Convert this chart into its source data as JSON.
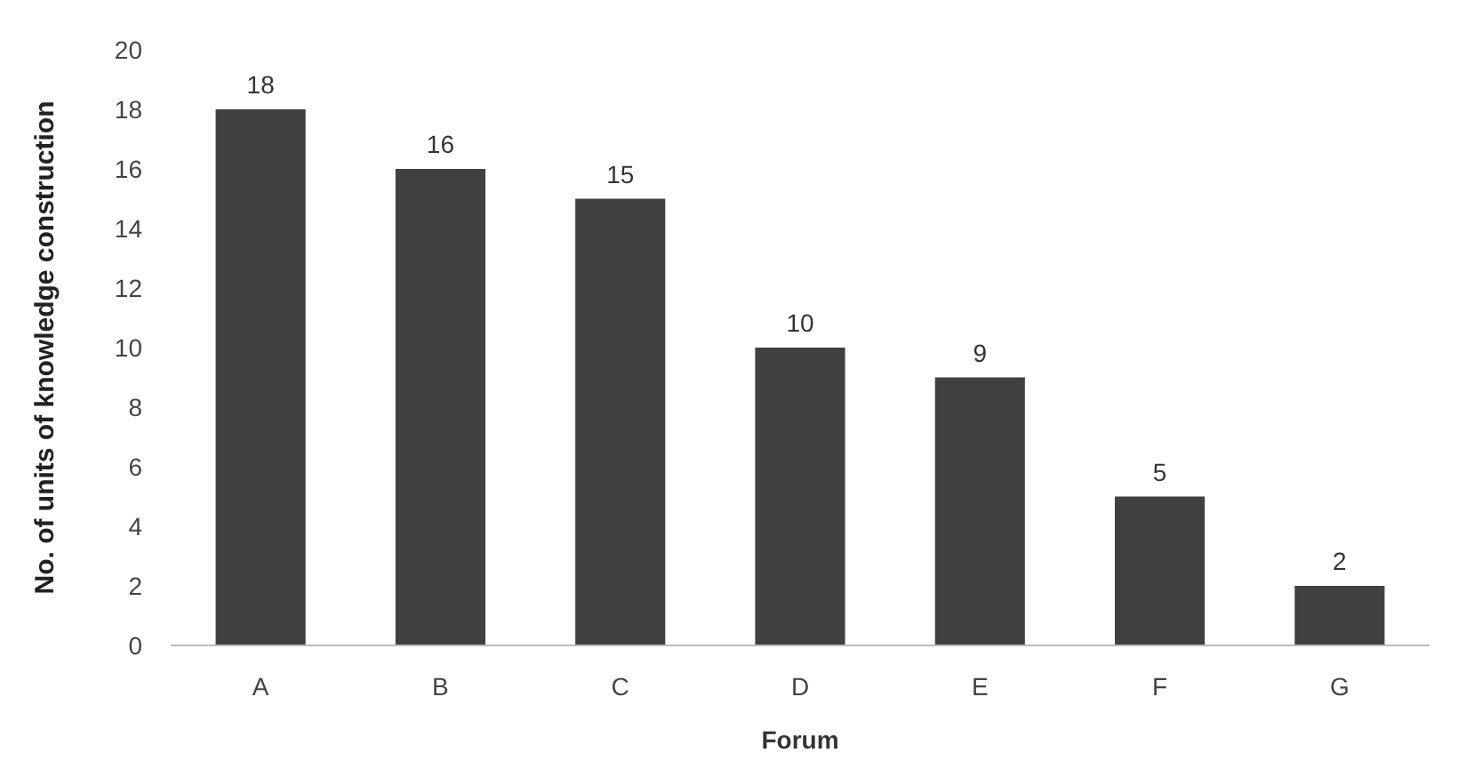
{
  "chart_data": {
    "type": "bar",
    "xlabel": "Forum",
    "ylabel": "No. of units of knowledge construction",
    "categories": [
      "A",
      "B",
      "C",
      "D",
      "E",
      "F",
      "G"
    ],
    "values": [
      18,
      16,
      15,
      10,
      9,
      5,
      2
    ],
    "color": "#404040",
    "ylim": [
      0,
      20
    ],
    "yticks": [
      0,
      2,
      4,
      6,
      8,
      10,
      12,
      14,
      16,
      18,
      20
    ],
    "grid": false,
    "data_labels": true
  }
}
